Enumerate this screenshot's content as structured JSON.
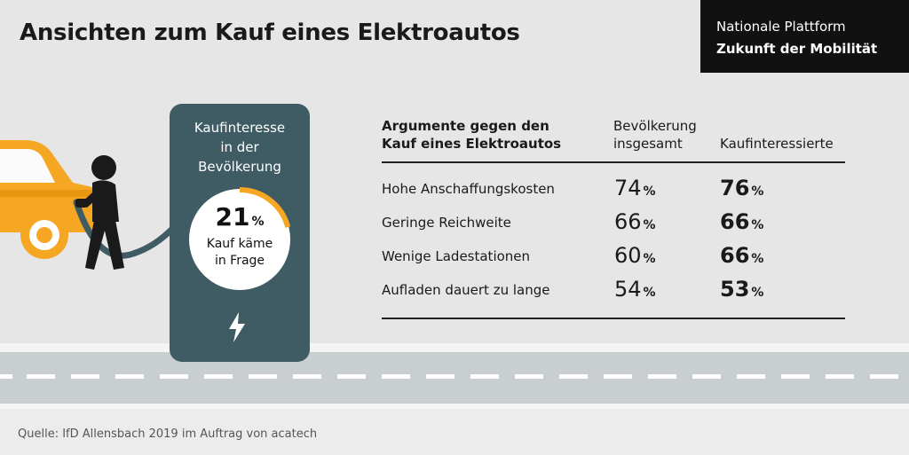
{
  "header": {
    "title": "Ansichten zum Kauf eines Elektroautos",
    "brand_line1": "Nationale Plattform",
    "brand_line2": "Zukunft der Mobilität"
  },
  "panel": {
    "label_line1": "Kaufinteresse",
    "label_line2": "in der",
    "label_line3": "Bevölkerung",
    "value": "21",
    "value_unit": "%",
    "value_fraction": 0.21,
    "caption_line1": "Kauf käme",
    "caption_line2": "in Frage",
    "icon": "lightning-bolt-icon"
  },
  "table": {
    "header_argument_line1": "Argumente gegen den",
    "header_argument_line2": "Kauf eines Elektroautos",
    "header_population_line1": "Bevölkerung",
    "header_population_line2": "insgesamt",
    "header_interested": "Kaufinteressierte",
    "unit": "%",
    "rows": [
      {
        "label": "Hohe Anschaffungskosten",
        "population": "74",
        "interested": "76"
      },
      {
        "label": "Geringe Reichweite",
        "population": "66",
        "interested": "66"
      },
      {
        "label": "Wenige Ladestationen",
        "population": "60",
        "interested": "66"
      },
      {
        "label": "Aufladen dauert zu lange",
        "population": "54",
        "interested": "53"
      }
    ]
  },
  "footer": {
    "source": "Quelle: IfD Allensbach 2019 im Auftrag von acatech"
  },
  "colors": {
    "background": "#e6e6e6",
    "panel": "#3f5c65",
    "accent_orange": "#f5a623",
    "brand_box": "#111111"
  }
}
